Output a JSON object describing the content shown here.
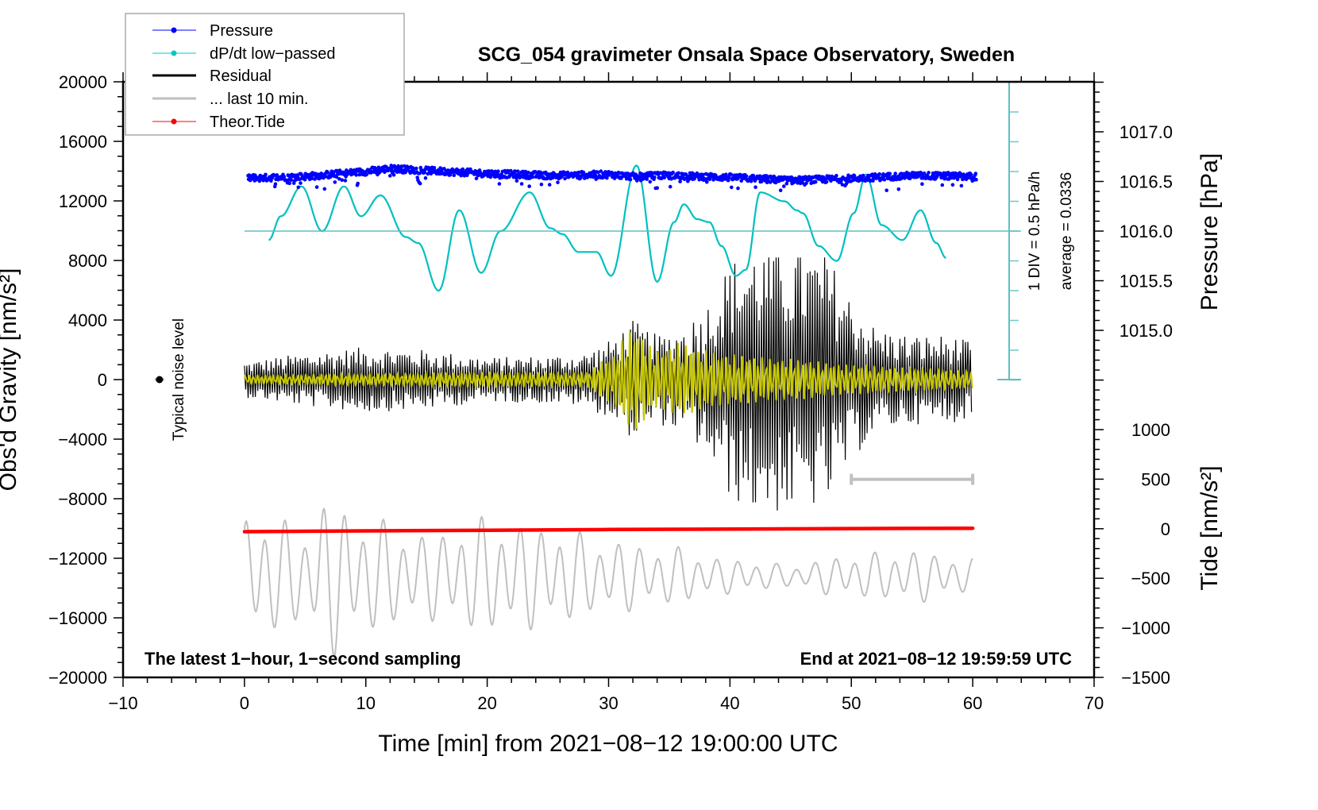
{
  "chart_data": {
    "type": "line",
    "title": "SCG_054 gravimeter Onsala Space Observatory, Sweden",
    "xlabel": "Time [min] from 2021−08−12 19:00:00 UTC",
    "ylabel_left": "Obs'd Gravity [nm/s²]",
    "ylabel_right_pressure": "Pressure [hPa]",
    "ylabel_right_tide": "Tide [nm/s²]",
    "xlim": [
      -10,
      70
    ],
    "ylim_left": [
      -20000,
      20000
    ],
    "ylim_pressure_labels": [
      1015.0,
      1017.0
    ],
    "ylim_tide": [
      -1500,
      1000
    ],
    "x_ticks": [
      -10,
      0,
      10,
      20,
      30,
      40,
      50,
      60,
      70
    ],
    "x_tick_labels": [
      "−10",
      "0",
      "10",
      "20",
      "30",
      "40",
      "50",
      "60",
      "70"
    ],
    "y_left_ticks": [
      20000,
      16000,
      12000,
      8000,
      4000,
      0,
      -4000,
      -8000,
      -12000,
      -16000,
      -20000
    ],
    "y_left_tick_labels": [
      "20000",
      "16000",
      "12000",
      "8000",
      "4000",
      "0",
      "−4000",
      "−8000",
      "−12000",
      "−16000",
      "−20000"
    ],
    "pressure_ticks": [
      1017.0,
      1016.5,
      1016.0,
      1015.5,
      1015.0
    ],
    "pressure_tick_labels": [
      "1017.0",
      "1016.5",
      "1016.0",
      "1015.5",
      "1015.0"
    ],
    "tide_ticks": [
      1000,
      500,
      0,
      -500,
      -1000,
      -1500
    ],
    "tide_tick_labels": [
      "1000",
      "500",
      "0",
      "−500",
      "−1000",
      "−1500"
    ],
    "legend": {
      "placement": "top-left",
      "entries": [
        {
          "label": "Pressure",
          "color": "#0000ff",
          "style": "line-dot"
        },
        {
          "label": "dP/dt low−passed",
          "color": "#00c8c8",
          "style": "line-dot"
        },
        {
          "label": "Residual",
          "color": "#000000",
          "style": "line"
        },
        {
          "label": "... last 10 min.",
          "color": "#bebebe",
          "style": "line"
        },
        {
          "label": "Theor.Tide",
          "color": "#ff0000",
          "style": "line-dot"
        }
      ]
    },
    "annotations": {
      "bottom_left": "The latest 1−hour, 1−second sampling",
      "bottom_right": "End at 2021−08−12 19:59:59 UTC",
      "noise_label": "Typical noise level",
      "dpdt_scale": "1 DIV = 0.5 hPa/h",
      "dpdt_average": "average = 0.0336"
    },
    "noise_level_marker": {
      "x": -7,
      "y": 0
    },
    "last10_bar": {
      "x_start": 50,
      "x_end": 60,
      "y": -6700
    },
    "series": [
      {
        "name": "Pressure",
        "axis": "pressure",
        "unit": "hPa",
        "x": [
          0,
          5,
          10,
          12,
          15,
          20,
          25,
          30,
          32,
          35,
          40,
          42,
          45,
          50,
          55,
          60
        ],
        "values": [
          1016.53,
          1016.55,
          1016.6,
          1016.63,
          1016.61,
          1016.58,
          1016.56,
          1016.57,
          1016.55,
          1016.56,
          1016.54,
          1016.53,
          1016.51,
          1016.53,
          1016.56,
          1016.55
        ]
      },
      {
        "name": "dP/dt low-passed",
        "axis": "dpdt_div",
        "unit": "DIV (0.5 hPa/h)",
        "x": [
          2,
          3,
          4.7,
          6.4,
          8.2,
          9.6,
          11.2,
          13.3,
          14.3,
          16.0,
          17.7,
          19.5,
          21.1,
          23.5,
          25.2,
          26.2,
          27.5,
          29.0,
          30.2,
          32.3,
          34.0,
          35.4,
          36.2,
          37.3,
          38.3,
          39.3,
          40.5,
          41.3,
          42.5,
          44.5,
          45.5,
          46.0,
          47.3,
          48.8,
          50.2,
          51.2,
          52.5,
          54.2,
          55.7,
          57.0,
          57.8
        ],
        "values": [
          -0.3,
          0.5,
          1.5,
          0,
          1.5,
          0.5,
          1.2,
          -0.2,
          -0.4,
          -2.0,
          0.7,
          -1.4,
          0,
          1.3,
          0.1,
          -0.1,
          -0.7,
          -0.7,
          -1.5,
          2.2,
          -1.7,
          0.3,
          0.9,
          0.4,
          0.3,
          -0.5,
          -1.5,
          -1.3,
          1.3,
          1.0,
          0.7,
          0.6,
          -0.5,
          -1.0,
          0.6,
          1.9,
          0.2,
          -0.3,
          0.7,
          -0.4,
          -0.9
        ]
      },
      {
        "name": "Residual",
        "axis": "left",
        "unit": "nm/s²",
        "envelope_x": [
          0,
          5,
          10,
          15,
          20,
          25,
          28,
          30,
          32,
          34,
          36,
          38,
          40,
          42,
          45,
          48,
          50,
          52,
          55,
          58,
          60
        ],
        "envelope_amplitude": [
          1200,
          1800,
          2200,
          2000,
          1500,
          1600,
          1800,
          2600,
          4000,
          3000,
          3500,
          5000,
          8000,
          9000,
          9000,
          8500,
          5500,
          3500,
          3000,
          3000,
          2500
        ]
      },
      {
        "name": "Residual filtered (yellow)",
        "axis": "left",
        "unit": "nm/s²",
        "envelope_x": [
          0,
          10,
          20,
          28,
          30,
          32,
          34,
          36,
          38,
          40,
          45,
          50,
          55,
          60
        ],
        "envelope_amplitude": [
          300,
          400,
          500,
          500,
          1500,
          3500,
          2000,
          2500,
          2000,
          1700,
          1400,
          1000,
          800,
          600
        ]
      },
      {
        "name": "... last 10 min.",
        "axis": "left",
        "unit": "nm/s²",
        "note": "last 10 minutes of residual replotted over minutes 0–60 with offset",
        "envelope_x": [
          0,
          5,
          7,
          10,
          15,
          20,
          25,
          30,
          35,
          40,
          45,
          50,
          55,
          60
        ],
        "envelope_amplitude": [
          4500,
          3500,
          5500,
          4000,
          3000,
          4000,
          3500,
          2500,
          2000,
          1200,
          800,
          1500,
          1800,
          1200
        ],
        "offset": -13200
      },
      {
        "name": "Theor.Tide",
        "axis": "tide",
        "unit": "nm/s²",
        "x": [
          0,
          10,
          20,
          30,
          40,
          50,
          60
        ],
        "values": [
          -30,
          -22,
          -15,
          -8,
          -3,
          2,
          5
        ]
      }
    ],
    "grid": false
  }
}
